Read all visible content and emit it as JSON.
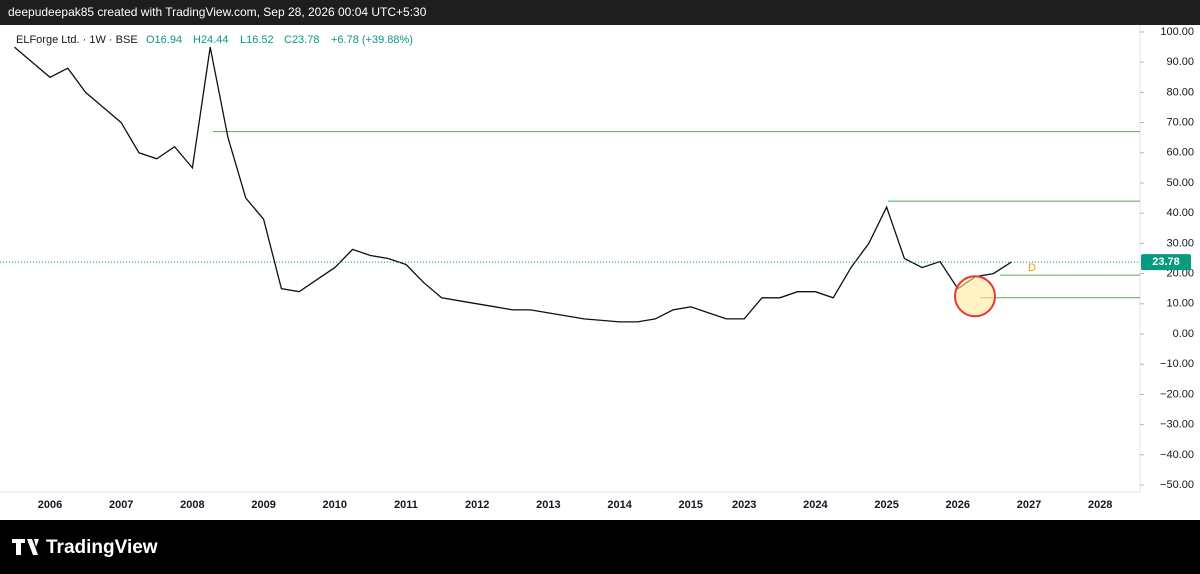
{
  "header": "deepudeepak85 created with TradingView.com, Sep 28, 2026 00:04 UTC+5:30",
  "legend": {
    "symbol": "ELForge Ltd. · 1W · BSE",
    "open": "O16.94",
    "high": "H24.44",
    "low": "L16.52",
    "close": "C23.78",
    "change": "+6.78 (+39.88%)"
  },
  "footer": "TradingView",
  "chart_data": {
    "type": "line",
    "categories": [
      null,
      null,
      "2006",
      null,
      null,
      null,
      "2007",
      null,
      null,
      null,
      "2008",
      null,
      null,
      null,
      "2009",
      null,
      null,
      null,
      "2010",
      null,
      null,
      null,
      "2011",
      null,
      null,
      null,
      "2012",
      null,
      null,
      null,
      "2013",
      null,
      null,
      null,
      "2014",
      null,
      null,
      null,
      "2015",
      null,
      null,
      "2023",
      null,
      null,
      null,
      "2024",
      null,
      null,
      null,
      "2025",
      null,
      null,
      null,
      "2026",
      null,
      null,
      null,
      "2027",
      null,
      null,
      null,
      "2028"
    ],
    "series": [
      {
        "name": "ELForge Ltd.",
        "color": "#111111",
        "values": [
          95,
          90,
          85,
          88,
          80,
          75,
          70,
          60,
          58,
          62,
          55,
          95,
          65,
          45,
          38,
          15,
          14,
          18,
          22,
          28,
          26,
          25,
          23,
          17,
          12,
          11,
          10,
          9,
          8,
          8,
          7,
          6,
          5,
          4.5,
          4,
          4,
          5,
          8,
          9,
          7,
          5,
          5,
          12,
          12,
          14,
          14,
          12,
          22,
          30,
          42,
          25,
          22,
          24,
          15,
          19,
          20,
          23.78,
          null,
          null,
          null,
          null,
          null
        ]
      }
    ],
    "levels": [
      67,
      44,
      19.5,
      12
    ],
    "annotation": "D",
    "ylim": [
      -52.3,
      102.3
    ],
    "yticks": [
      {
        "value": 100,
        "label": "100.00"
      },
      {
        "value": 90,
        "label": "90.00"
      },
      {
        "value": 80,
        "label": "80.00"
      },
      {
        "value": 70,
        "label": "70.00"
      },
      {
        "value": 60,
        "label": "60.00"
      },
      {
        "value": 50,
        "label": "50.00"
      },
      {
        "value": 40,
        "label": "40.00"
      },
      {
        "value": 30,
        "label": "30.00"
      },
      {
        "value": 20,
        "label": "20.00"
      },
      {
        "value": 10,
        "label": "10.00"
      },
      {
        "value": 0,
        "label": "0.00"
      },
      {
        "value": -10,
        "label": "−10.00"
      },
      {
        "value": -20,
        "label": "−20.00"
      },
      {
        "value": -30,
        "label": "−30.00"
      },
      {
        "value": -40,
        "label": "−40.00"
      },
      {
        "value": -50,
        "label": "−50.00"
      }
    ],
    "grid": false
  }
}
